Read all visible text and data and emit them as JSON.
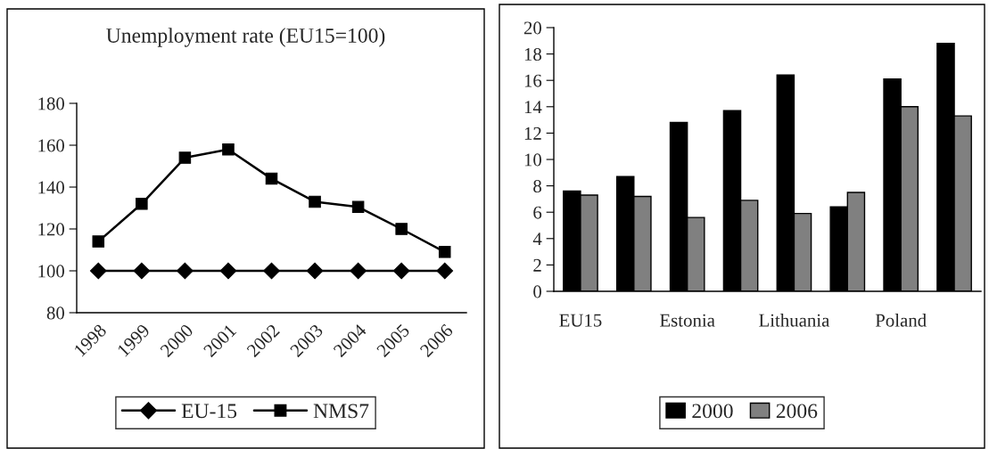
{
  "chart_data": [
    {
      "type": "line",
      "title": "Unemployment rate (EU15=100)",
      "categories": [
        "1998",
        "1999",
        "2000",
        "2001",
        "2002",
        "2003",
        "2004",
        "2005",
        "2006"
      ],
      "series": [
        {
          "name": "EU-15",
          "color": "#000000",
          "marker": "diamond",
          "values": [
            100,
            100,
            100,
            100,
            100,
            100,
            100,
            100,
            100
          ]
        },
        {
          "name": "NMS7",
          "color": "#000000",
          "marker": "square",
          "values": [
            114,
            132,
            154,
            158,
            144,
            133,
            130.5,
            120,
            109
          ]
        }
      ],
      "ylim": [
        80,
        180
      ],
      "yticks": [
        80,
        100,
        120,
        140,
        160,
        180
      ],
      "grid": false,
      "legend": "bottom",
      "line_style": "solid"
    },
    {
      "type": "bar",
      "categories": [
        "EU15",
        null,
        "Estonia",
        null,
        "Lithuania",
        null,
        "Poland",
        null
      ],
      "series": [
        {
          "name": "2000",
          "color": "#000000",
          "values": [
            7.6,
            8.7,
            12.8,
            13.7,
            16.4,
            6.4,
            16.1,
            18.8
          ]
        },
        {
          "name": "2006",
          "color": "#808080",
          "values": [
            7.3,
            7.2,
            5.6,
            6.9,
            5.9,
            7.5,
            14.0,
            13.3
          ]
        }
      ],
      "ylim": [
        0,
        20
      ],
      "yticks": [
        0,
        2,
        4,
        6,
        8,
        10,
        12,
        14,
        16,
        18,
        20
      ],
      "grid": false,
      "legend": "bottom"
    }
  ]
}
